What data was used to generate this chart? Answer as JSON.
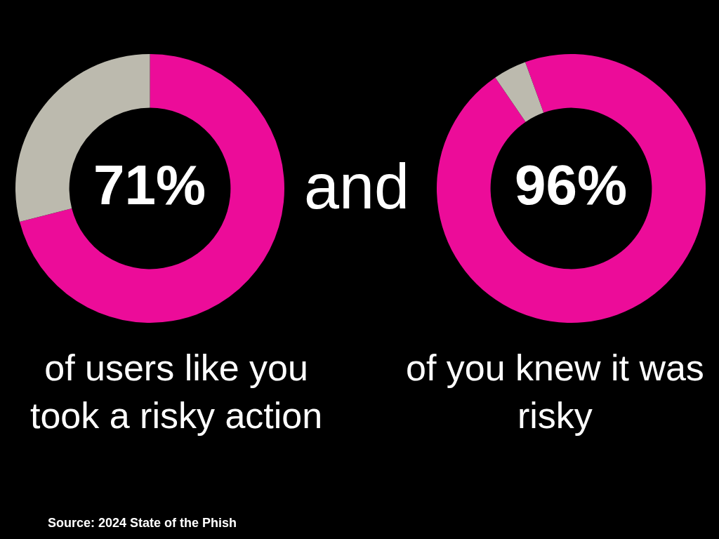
{
  "chart_data": [
    {
      "type": "donut",
      "categories": [
        null,
        null
      ],
      "values": [
        71,
        29
      ],
      "colors": [
        "#ec0c99",
        "#bcbaae"
      ],
      "annotations": [
        "71%",
        "of users like you took a risky action",
        "and",
        "Source: 2024 State of the Phish"
      ]
    },
    {
      "type": "donut",
      "categories": [
        null,
        null
      ],
      "values": [
        96,
        4
      ],
      "colors": [
        "#ec0c99",
        "#bcbaae"
      ],
      "annotations": [
        "96%",
        "of you knew it was risky"
      ]
    }
  ]
}
